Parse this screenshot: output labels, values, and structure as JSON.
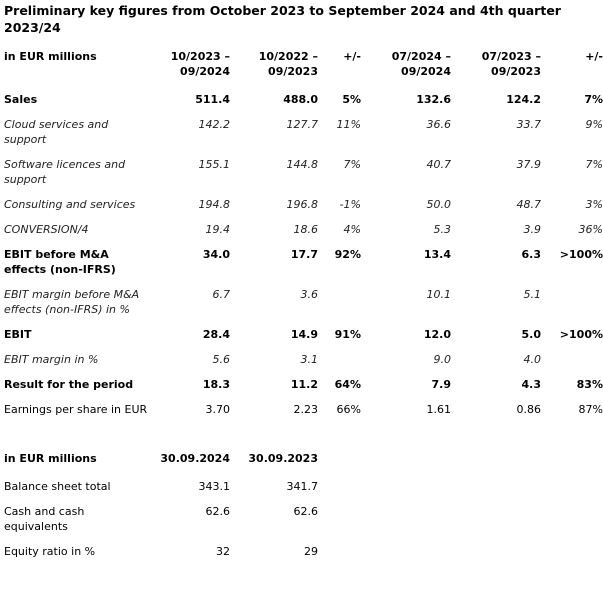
{
  "title": "Preliminary key figures from October 2023 to September 2024 and 4th quarter 2023/24",
  "table1": {
    "header": [
      "in EUR millions",
      "10/2023 – 09/2024",
      "10/2022 – 09/2023",
      "+/-",
      "07/2024 – 09/2024",
      "07/2023 – 09/2023",
      "+/-"
    ],
    "rows": [
      {
        "style": "b",
        "cells": [
          "Sales",
          "511.4",
          "488.0",
          "5%",
          "132.6",
          "124.2",
          "7%"
        ]
      },
      {
        "style": "i",
        "cells": [
          "Cloud services and support",
          "142.2",
          "127.7",
          "11%",
          "36.6",
          "33.7",
          "9%"
        ]
      },
      {
        "style": "i",
        "cells": [
          "Software licences and support",
          "155.1",
          "144.8",
          "7%",
          "40.7",
          "37.9",
          "7%"
        ]
      },
      {
        "style": "i",
        "cells": [
          "Consulting and services",
          "194.8",
          "196.8",
          "-1%",
          "50.0",
          "48.7",
          "3%"
        ]
      },
      {
        "style": "i",
        "cells": [
          "CONVERSION/4",
          "19.4",
          "18.6",
          "4%",
          "5.3",
          "3.9",
          "36%"
        ]
      },
      {
        "style": "b",
        "cells": [
          "EBIT before M&A effects (non-IFRS)",
          "34.0",
          "17.7",
          "92%",
          "13.4",
          "6.3",
          ">100%"
        ]
      },
      {
        "style": "i",
        "cells": [
          "EBIT margin before M&A effects (non-IFRS) in %",
          "6.7",
          "3.6",
          "",
          "10.1",
          "5.1",
          ""
        ]
      },
      {
        "style": "b",
        "cells": [
          "EBIT",
          "28.4",
          "14.9",
          "91%",
          "12.0",
          "5.0",
          ">100%"
        ]
      },
      {
        "style": "i",
        "cells": [
          "EBIT margin in %",
          "5.6",
          "3.1",
          "",
          "9.0",
          "4.0",
          ""
        ]
      },
      {
        "style": "b",
        "cells": [
          "Result for the period",
          "18.3",
          "11.2",
          "64%",
          "7.9",
          "4.3",
          "83%"
        ]
      },
      {
        "style": "n",
        "cells": [
          "Earnings per share in EUR",
          "3.70",
          "2.23",
          "66%",
          "1.61",
          "0.86",
          "87%"
        ]
      }
    ]
  },
  "table2": {
    "header": [
      "in EUR millions",
      "30.09.2024",
      "30.09.2023"
    ],
    "rows": [
      [
        "Balance sheet total",
        "343.1",
        "341.7"
      ],
      [
        "Cash and cash equivalents",
        "62.6",
        "62.6"
      ],
      [
        "Equity ratio in %",
        "32",
        "29"
      ]
    ]
  }
}
